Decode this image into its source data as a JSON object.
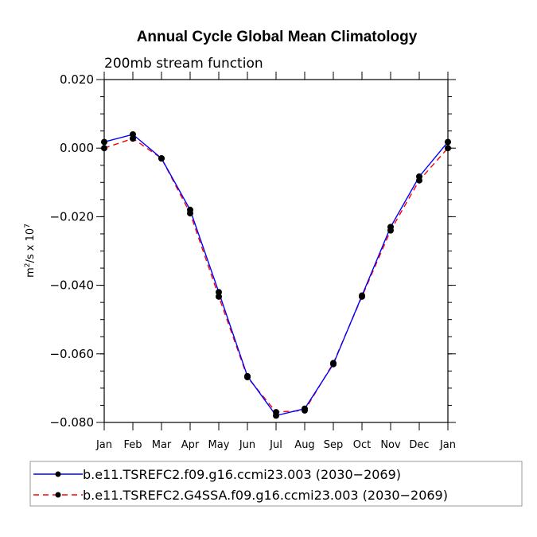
{
  "chart_data": {
    "type": "line",
    "title": "Annual Cycle Global Mean Climatology",
    "subtitle": "200mb stream function",
    "ylabel_prefix": "m",
    "ylabel_sup1": "2",
    "ylabel_mid": "/s x 10",
    "ylabel_sup2": "7",
    "ylim": [
      -0.08,
      0.02
    ],
    "yticks": [
      -0.08,
      -0.06,
      -0.04,
      -0.02,
      0.0,
      0.02
    ],
    "ytick_labels": [
      "−0.080",
      "−0.060",
      "−0.040",
      "−0.020",
      "0.000",
      "0.020"
    ],
    "categories": [
      "Jan",
      "Feb",
      "Mar",
      "Apr",
      "May",
      "Jun",
      "Jul",
      "Aug",
      "Sep",
      "Oct",
      "Nov",
      "Dec",
      "Jan"
    ],
    "legend_placement": "bottom",
    "series": [
      {
        "name": "b.e11.TSREFC2.f09.g16.ccmi23.003 (2030−2069)",
        "color": "#0000ff",
        "dash": "solid",
        "values": [
          0.0018,
          0.004,
          -0.003,
          -0.018,
          -0.042,
          -0.0665,
          -0.078,
          -0.076,
          -0.063,
          -0.043,
          -0.023,
          -0.0083,
          0.0018
        ]
      },
      {
        "name": "b.e11.TSREFC2.G4SSA.f09.g16.ccmi23.003 (2030−2069)",
        "color": "#ff0000",
        "dash": "dashed",
        "values": [
          0.0,
          0.0028,
          -0.003,
          -0.019,
          -0.0433,
          -0.0668,
          -0.077,
          -0.0765,
          -0.0627,
          -0.0433,
          -0.024,
          -0.0094,
          0.0
        ]
      }
    ]
  }
}
